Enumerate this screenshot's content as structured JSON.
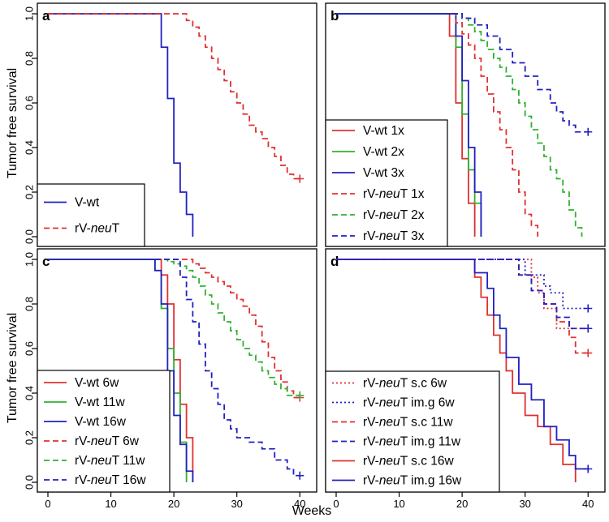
{
  "figure": {
    "ylabel_top": "Tumor free survival",
    "ylabel_bottom": "Tumor free survival",
    "xlabel": "Weeks"
  },
  "chart_data": [
    {
      "type": "line",
      "panel": "a",
      "xlabel": "",
      "ylabel": "Tumor free survival",
      "xlim": [
        0,
        41
      ],
      "ylim": [
        0,
        1
      ],
      "xticks": [
        0,
        10,
        20,
        30,
        40
      ],
      "yticks": [
        "0.0",
        "0.2",
        "0.4",
        "0.6",
        "0.8",
        "1.0"
      ],
      "legend": "bottom-left",
      "series": [
        {
          "name": "V-wt",
          "name_parts": [
            "V-wt",
            "",
            ""
          ],
          "color": "#2020c0",
          "dash": "solid",
          "x": [
            0,
            18,
            19,
            20,
            21,
            22,
            23
          ],
          "y": [
            1.0,
            0.85,
            0.62,
            0.33,
            0.2,
            0.1,
            0.0
          ],
          "censored": []
        },
        {
          "name": "rV-neuT",
          "name_parts": [
            "rV-",
            "neu",
            "T"
          ],
          "color": "#e03030",
          "dash": "dashed",
          "x": [
            0,
            22,
            23,
            24,
            25,
            26,
            27,
            28,
            29,
            30,
            31,
            32,
            33,
            34,
            35,
            36,
            37,
            38,
            39,
            40
          ],
          "y": [
            1.0,
            0.97,
            0.94,
            0.9,
            0.85,
            0.8,
            0.75,
            0.7,
            0.65,
            0.6,
            0.55,
            0.5,
            0.47,
            0.44,
            0.4,
            0.36,
            0.32,
            0.28,
            0.26,
            0.26
          ],
          "censored": [
            [
              40,
              0.26
            ]
          ]
        }
      ]
    },
    {
      "type": "line",
      "panel": "b",
      "xlabel": "",
      "ylabel": "",
      "xlim": [
        0,
        41
      ],
      "ylim": [
        0,
        1
      ],
      "xticks": [
        0,
        10,
        20,
        30,
        40
      ],
      "yticks": [
        "0.0",
        "0.2",
        "0.4",
        "0.6",
        "0.8",
        "1.0"
      ],
      "legend": "bottom-left",
      "series": [
        {
          "name": "V-wt 1x",
          "name_parts": [
            "V-wt 1x",
            "",
            ""
          ],
          "color": "#e03030",
          "dash": "solid",
          "x": [
            0,
            18,
            19,
            20,
            21,
            22
          ],
          "y": [
            1.0,
            0.9,
            0.6,
            0.35,
            0.15,
            0.0
          ],
          "censored": []
        },
        {
          "name": "V-wt 2x",
          "name_parts": [
            "V-wt 2x",
            "",
            ""
          ],
          "color": "#30b030",
          "dash": "solid",
          "x": [
            0,
            19,
            20,
            21,
            22,
            23
          ],
          "y": [
            1.0,
            0.85,
            0.55,
            0.3,
            0.15,
            0.0
          ],
          "censored": []
        },
        {
          "name": "V-wt 3x",
          "name_parts": [
            "V-wt 3x",
            "",
            ""
          ],
          "color": "#2020c0",
          "dash": "solid",
          "x": [
            0,
            19,
            20,
            21,
            22,
            23
          ],
          "y": [
            1.0,
            0.9,
            0.7,
            0.4,
            0.2,
            0.0
          ],
          "censored": []
        },
        {
          "name": "rV-neuT 1x",
          "name_parts": [
            "rV-",
            "neu",
            "T 1x"
          ],
          "color": "#e03030",
          "dash": "dashed",
          "x": [
            0,
            19,
            20,
            21,
            22,
            23,
            24,
            25,
            26,
            27,
            28,
            29,
            30,
            31,
            32
          ],
          "y": [
            1.0,
            0.96,
            0.91,
            0.86,
            0.8,
            0.72,
            0.64,
            0.56,
            0.48,
            0.4,
            0.3,
            0.2,
            0.1,
            0.05,
            0.0
          ],
          "censored": []
        },
        {
          "name": "rV-neuT 2x",
          "name_parts": [
            "rV-",
            "neu",
            "T 2x"
          ],
          "color": "#30b030",
          "dash": "dashed",
          "x": [
            0,
            20,
            21,
            22,
            23,
            24,
            25,
            26,
            27,
            28,
            29,
            30,
            31,
            32,
            33,
            34,
            35,
            36,
            37,
            38,
            39
          ],
          "y": [
            1.0,
            0.98,
            0.95,
            0.92,
            0.88,
            0.84,
            0.8,
            0.76,
            0.72,
            0.66,
            0.6,
            0.54,
            0.48,
            0.42,
            0.36,
            0.3,
            0.26,
            0.2,
            0.12,
            0.04,
            0.0
          ],
          "censored": []
        },
        {
          "name": "rV-neuT 3x",
          "name_parts": [
            "rV-",
            "neu",
            "T 3x"
          ],
          "color": "#2020c0",
          "dash": "dashed",
          "x": [
            0,
            20,
            22,
            24,
            26,
            28,
            30,
            32,
            34,
            35,
            36,
            37,
            38,
            40
          ],
          "y": [
            1.0,
            0.98,
            0.95,
            0.9,
            0.84,
            0.78,
            0.72,
            0.66,
            0.6,
            0.56,
            0.52,
            0.5,
            0.47,
            0.47
          ],
          "censored": [
            [
              40,
              0.47
            ]
          ]
        }
      ]
    },
    {
      "type": "line",
      "panel": "c",
      "xlabel": "Weeks",
      "ylabel": "Tumor free survival",
      "xlim": [
        0,
        41
      ],
      "ylim": [
        0,
        1
      ],
      "xticks": [
        0,
        10,
        20,
        30,
        40
      ],
      "yticks": [
        "0.0",
        "0.2",
        "0.4",
        "0.6",
        "0.8",
        "1.0"
      ],
      "legend": "bottom-left",
      "series": [
        {
          "name": "V-wt 6w",
          "name_parts": [
            "V-wt 6w",
            "",
            ""
          ],
          "color": "#e03030",
          "dash": "solid",
          "x": [
            0,
            18,
            19,
            20,
            21,
            22,
            23
          ],
          "y": [
            1.0,
            0.93,
            0.8,
            0.55,
            0.35,
            0.2,
            0.0
          ],
          "censored": []
        },
        {
          "name": "V-wt 11w",
          "name_parts": [
            "V-wt 11w",
            "",
            ""
          ],
          "color": "#30b030",
          "dash": "solid",
          "x": [
            0,
            17,
            18,
            19,
            20,
            21,
            22
          ],
          "y": [
            1.0,
            0.95,
            0.78,
            0.6,
            0.4,
            0.18,
            0.0
          ],
          "censored": []
        },
        {
          "name": "V-wt 16w",
          "name_parts": [
            "V-wt 16w",
            "",
            ""
          ],
          "color": "#2020c0",
          "dash": "solid",
          "x": [
            0,
            17,
            18,
            19,
            20,
            21,
            22,
            23
          ],
          "y": [
            1.0,
            0.95,
            0.8,
            0.5,
            0.3,
            0.17,
            0.05,
            0.0
          ],
          "censored": []
        },
        {
          "name": "rV-neuT 6w",
          "name_parts": [
            "rV-",
            "neu",
            "T 6w"
          ],
          "color": "#e03030",
          "dash": "dashed",
          "x": [
            0,
            23,
            24,
            25,
            26,
            27,
            28,
            29,
            30,
            31,
            32,
            33,
            34,
            35,
            36,
            37,
            38,
            39,
            40
          ],
          "y": [
            1.0,
            0.98,
            0.96,
            0.94,
            0.92,
            0.9,
            0.88,
            0.85,
            0.82,
            0.79,
            0.75,
            0.7,
            0.63,
            0.56,
            0.5,
            0.45,
            0.41,
            0.38,
            0.38
          ],
          "censored": [
            [
              40,
              0.38
            ]
          ]
        },
        {
          "name": "rV-neuT 11w",
          "name_parts": [
            "rV-",
            "neu",
            "T 11w"
          ],
          "color": "#30b030",
          "dash": "dashed",
          "x": [
            0,
            19,
            20,
            21,
            22,
            23,
            24,
            25,
            26,
            27,
            28,
            29,
            30,
            31,
            32,
            33,
            34,
            35,
            36,
            37,
            38,
            39,
            40
          ],
          "y": [
            1.0,
            0.99,
            0.98,
            0.97,
            0.95,
            0.92,
            0.88,
            0.84,
            0.8,
            0.76,
            0.72,
            0.68,
            0.64,
            0.6,
            0.57,
            0.54,
            0.5,
            0.47,
            0.44,
            0.42,
            0.39,
            0.39,
            0.39
          ],
          "censored": [
            [
              40,
              0.39
            ]
          ]
        },
        {
          "name": "rV-neuT 16w",
          "name_parts": [
            "rV-",
            "neu",
            "T 16w"
          ],
          "color": "#2020c0",
          "dash": "dashed",
          "x": [
            0,
            21,
            22,
            23,
            24,
            25,
            26,
            27,
            28,
            29,
            30,
            32,
            34,
            36,
            38,
            39,
            40
          ],
          "y": [
            1.0,
            0.92,
            0.82,
            0.72,
            0.62,
            0.5,
            0.42,
            0.35,
            0.28,
            0.24,
            0.2,
            0.18,
            0.15,
            0.1,
            0.06,
            0.03,
            0.03
          ],
          "censored": [
            [
              40,
              0.03
            ]
          ]
        }
      ]
    },
    {
      "type": "line",
      "panel": "d",
      "xlabel": "Weeks",
      "ylabel": "",
      "xlim": [
        0,
        41
      ],
      "ylim": [
        0,
        1
      ],
      "xticks": [
        0,
        10,
        20,
        30,
        40
      ],
      "yticks": [
        "0.0",
        "0.2",
        "0.4",
        "0.6",
        "0.8",
        "1.0"
      ],
      "legend": "bottom-left",
      "series": [
        {
          "name": "rV-neuT s.c 6w",
          "name_parts": [
            "rV-",
            "neu",
            "T s.c 6w"
          ],
          "color": "#e03030",
          "dash": "dotted",
          "x": [
            0,
            31,
            32,
            33,
            35,
            36,
            40
          ],
          "y": [
            1.0,
            0.92,
            0.85,
            0.78,
            0.69,
            0.69,
            0.69
          ],
          "censored": [
            [
              40,
              0.69
            ]
          ]
        },
        {
          "name": "rV-neuT im.g 6w",
          "name_parts": [
            "rV-",
            "neu",
            "T im.g 6w"
          ],
          "color": "#2020c0",
          "dash": "dotted",
          "x": [
            0,
            30,
            33,
            34,
            36,
            40
          ],
          "y": [
            1.0,
            0.93,
            0.88,
            0.85,
            0.78,
            0.78
          ],
          "censored": [
            [
              40,
              0.78
            ]
          ]
        },
        {
          "name": "rV-neuT s.c 11w",
          "name_parts": [
            "rV-",
            "neu",
            "T s.c 11w"
          ],
          "color": "#e03030",
          "dash": "dashed",
          "x": [
            0,
            29,
            31,
            33,
            35,
            37,
            38,
            40
          ],
          "y": [
            1.0,
            0.93,
            0.86,
            0.8,
            0.72,
            0.65,
            0.58,
            0.58
          ],
          "censored": [
            [
              40,
              0.58
            ]
          ]
        },
        {
          "name": "rV-neuT im.g 11w",
          "name_parts": [
            "rV-",
            "neu",
            "T im.g 11w"
          ],
          "color": "#2020c0",
          "dash": "dashed",
          "x": [
            0,
            29,
            31,
            33,
            35,
            37,
            40
          ],
          "y": [
            1.0,
            0.93,
            0.86,
            0.8,
            0.74,
            0.69,
            0.69
          ],
          "censored": [
            [
              40,
              0.69
            ]
          ]
        },
        {
          "name": "rV-neuT s.c 16w",
          "name_parts": [
            "rV-",
            "neu",
            "T s.c 16w"
          ],
          "color": "#e03030",
          "dash": "solid",
          "x": [
            0,
            22,
            23,
            24,
            25,
            26,
            27,
            28,
            30,
            32,
            34,
            36,
            38
          ],
          "y": [
            1.0,
            0.92,
            0.83,
            0.75,
            0.66,
            0.58,
            0.5,
            0.4,
            0.3,
            0.25,
            0.17,
            0.08,
            0.0
          ],
          "censored": []
        },
        {
          "name": "rV-neuT im.g 16w",
          "name_parts": [
            "rV-",
            "neu",
            "T im.g 16w"
          ],
          "color": "#2020c0",
          "dash": "solid",
          "x": [
            0,
            22,
            24,
            25,
            26,
            27,
            29,
            31,
            33,
            35,
            37,
            38,
            40
          ],
          "y": [
            1.0,
            0.94,
            0.87,
            0.75,
            0.69,
            0.56,
            0.44,
            0.37,
            0.25,
            0.19,
            0.12,
            0.06,
            0.06
          ],
          "censored": [
            [
              40,
              0.06
            ]
          ]
        }
      ]
    }
  ]
}
